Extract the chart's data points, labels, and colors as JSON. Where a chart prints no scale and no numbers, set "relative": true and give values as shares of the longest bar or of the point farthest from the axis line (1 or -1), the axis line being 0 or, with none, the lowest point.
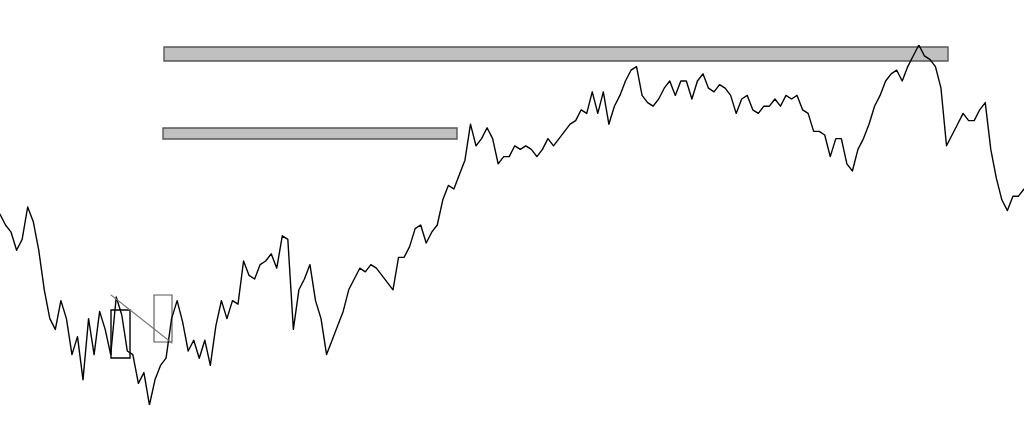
{
  "chart_data": {
    "type": "line",
    "relative": true,
    "grid": false,
    "legend": false,
    "marker": "none",
    "line_style": "solid",
    "categories": [
      null,
      null,
      null,
      null,
      null,
      null,
      null,
      null,
      null,
      null,
      null,
      null,
      null,
      null,
      null,
      null,
      null,
      null,
      null,
      null,
      null,
      null,
      null,
      null,
      null,
      null,
      null,
      null,
      null,
      null,
      null,
      null,
      null,
      null,
      null,
      null,
      null,
      null,
      null,
      null,
      null,
      null,
      null,
      null,
      null,
      null,
      null,
      null,
      null,
      null,
      null,
      null,
      null,
      null,
      null,
      null,
      null,
      null,
      null,
      null,
      null,
      null,
      null,
      null,
      null,
      null,
      null,
      null,
      null,
      null,
      null,
      null,
      null,
      null,
      null,
      null,
      null,
      null,
      null,
      null,
      null,
      null,
      null,
      null,
      null,
      null,
      null,
      null,
      null,
      null,
      null,
      null,
      null,
      null,
      null,
      null,
      null,
      null,
      null,
      null,
      null,
      null,
      null,
      null,
      null,
      null,
      null,
      null,
      null,
      null,
      null,
      null,
      null,
      null,
      null,
      null,
      null,
      null,
      null,
      null,
      null,
      null,
      null,
      null,
      null,
      null,
      null,
      null,
      null,
      null,
      null,
      null,
      null,
      null,
      null,
      null,
      null,
      null,
      null,
      null,
      null,
      null,
      null,
      null,
      null,
      null,
      null,
      null,
      null,
      null,
      null,
      null,
      null,
      null,
      null,
      null,
      null,
      null,
      null,
      null,
      null,
      null,
      null,
      null,
      null,
      null,
      null,
      null,
      null,
      null,
      null,
      null,
      null,
      null,
      null,
      null,
      null,
      null,
      null,
      null,
      null,
      null,
      null,
      null,
      null,
      null
    ],
    "series": [
      {
        "color": "#000000",
        "values": [
          0.53,
          0.5,
          0.48,
          0.43,
          0.46,
          0.55,
          0.51,
          0.43,
          0.32,
          0.24,
          0.21,
          0.29,
          0.24,
          0.14,
          0.19,
          0.07,
          0.24,
          0.14,
          0.26,
          0.21,
          0.14,
          0.3,
          0.25,
          0.15,
          0.14,
          0.06,
          0.09,
          0,
          0.07,
          0.11,
          0.13,
          0.24,
          0.29,
          0.23,
          0.15,
          0.18,
          0.13,
          0.18,
          0.11,
          0.22,
          0.29,
          0.24,
          0.29,
          0.28,
          0.4,
          0.36,
          0.35,
          0.39,
          0.4,
          0.42,
          0.38,
          0.47,
          0.46,
          0.21,
          0.32,
          0.35,
          0.39,
          0.29,
          0.24,
          0.14,
          0.18,
          0.22,
          0.26,
          0.32,
          0.35,
          0.38,
          0.37,
          0.39,
          0.38,
          0.36,
          0.34,
          0.32,
          0.41,
          0.41,
          0.44,
          0.49,
          0.5,
          0.45,
          0.48,
          0.5,
          0.57,
          0.61,
          0.6,
          0.64,
          0.68,
          0.78,
          0.72,
          0.74,
          0.77,
          0.74,
          0.67,
          0.69,
          0.69,
          0.72,
          0.71,
          0.72,
          0.71,
          0.69,
          0.71,
          0.74,
          0.72,
          0.74,
          0.76,
          0.78,
          0.79,
          0.82,
          0.81,
          0.87,
          0.81,
          0.87,
          0.78,
          0.83,
          0.86,
          0.9,
          0.93,
          0.94,
          0.86,
          0.84,
          0.83,
          0.85,
          0.88,
          0.9,
          0.86,
          0.9,
          0.9,
          0.85,
          0.9,
          0.92,
          0.88,
          0.87,
          0.89,
          0.88,
          0.86,
          0.81,
          0.85,
          0.86,
          0.82,
          0.81,
          0.83,
          0.83,
          0.85,
          0.83,
          0.86,
          0.85,
          0.86,
          0.82,
          0.81,
          0.76,
          0.76,
          0.75,
          0.69,
          0.74,
          0.74,
          0.67,
          0.65,
          0.71,
          0.74,
          0.78,
          0.83,
          0.86,
          0.9,
          0.92,
          0.93,
          0.9,
          0.94,
          0.97,
          1,
          0.97,
          0.96,
          0.94,
          0.88,
          0.72,
          0.75,
          0.78,
          0.81,
          0.79,
          0.79,
          0.82,
          0.84,
          0.71,
          0.63,
          0.57,
          0.54,
          0.58,
          0.58,
          0.6
        ]
      }
    ]
  }
}
